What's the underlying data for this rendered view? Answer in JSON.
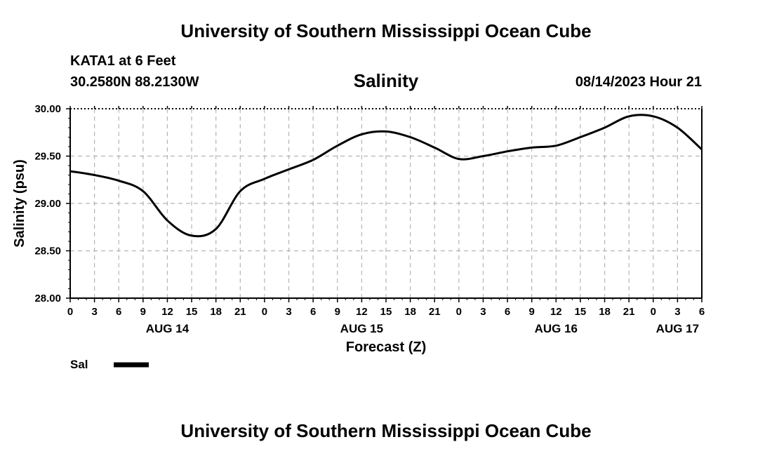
{
  "header": {
    "title": "University of Southern Mississippi Ocean Cube",
    "station": "KATA1 at 6 Feet",
    "coords": "30.2580N  88.2130W",
    "chart_title": "Salinity",
    "datetime": "08/14/2023 Hour 21"
  },
  "footer": {
    "title": "University of Southern Mississippi Ocean Cube"
  },
  "colors": {
    "line": "#000000",
    "grid": "#b4b4b4",
    "axis": "#000000"
  },
  "chart_data": {
    "type": "line",
    "title": "Salinity",
    "xlabel": "Forecast (Z)",
    "ylabel": "Salinity (psu)",
    "xlim": [
      0,
      78
    ],
    "ylim": [
      28.0,
      30.0
    ],
    "grid": true,
    "yticks": [
      "28.00",
      "28.50",
      "29.00",
      "29.50",
      "30.00"
    ],
    "xticks": [
      "0",
      "3",
      "6",
      "9",
      "12",
      "15",
      "18",
      "21",
      "0",
      "3",
      "6",
      "9",
      "12",
      "15",
      "18",
      "21",
      "0",
      "3",
      "6",
      "9",
      "12",
      "15",
      "18",
      "21",
      "0",
      "3",
      "6"
    ],
    "day_labels": [
      {
        "label": "AUG 14",
        "hour": 12
      },
      {
        "label": "AUG 15",
        "hour": 36
      },
      {
        "label": "AUG 16",
        "hour": 60
      },
      {
        "label": "AUG 17",
        "hour": 75
      }
    ],
    "legend": [
      {
        "name": "Sal"
      }
    ],
    "series": [
      {
        "name": "Sal",
        "x": [
          0,
          3,
          6,
          9,
          12,
          15,
          18,
          21,
          24,
          27,
          30,
          33,
          36,
          39,
          42,
          45,
          48,
          51,
          54,
          57,
          60,
          63,
          66,
          69,
          72,
          75,
          78
        ],
        "values": [
          29.34,
          29.3,
          29.24,
          29.13,
          28.82,
          28.66,
          28.73,
          29.13,
          29.26,
          29.36,
          29.46,
          29.61,
          29.73,
          29.76,
          29.7,
          29.59,
          29.47,
          29.5,
          29.55,
          29.59,
          29.61,
          29.7,
          29.8,
          29.92,
          29.92,
          29.8,
          29.57
        ]
      }
    ]
  }
}
